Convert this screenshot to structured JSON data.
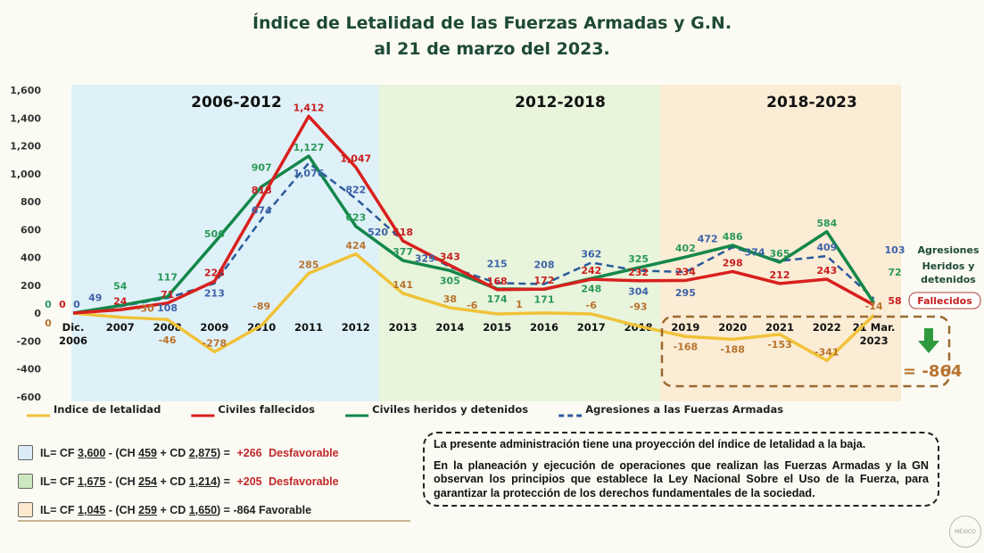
{
  "title_line1": "Índice de Letalidad de las Fuerzas Armadas y G.N.",
  "title_line2": "al 21 de marzo del 2023.",
  "chart_data": {
    "type": "line",
    "categories": [
      "Dic. 2006",
      "2007",
      "2008",
      "2009",
      "2010",
      "2011",
      "2012",
      "2013",
      "2014",
      "2015",
      "2016",
      "2017",
      "2018",
      "2019",
      "2020",
      "2021",
      "2022",
      "21 Mar. 2023"
    ],
    "ylim": [
      -600,
      1600
    ],
    "yticks": [
      -600,
      -400,
      -200,
      0,
      200,
      400,
      600,
      800,
      1000,
      1200,
      1400,
      1600
    ],
    "ytick_labels": [
      "-600",
      "-400",
      "-200",
      "0",
      "200",
      "400",
      "600",
      "800",
      "1,000",
      "1,200",
      "1,400",
      "1,600"
    ],
    "grid": false,
    "periods": [
      {
        "label": "2006-2012",
        "color": "#dff1f8"
      },
      {
        "label": "2012-2018",
        "color": "#e8f4dc"
      },
      {
        "label": "2018-2023",
        "color": "#fbecd6"
      }
    ],
    "series": [
      {
        "name": "Indice de letalidad",
        "color": "#f0c238",
        "label_color": "#b8732d",
        "dashed": false,
        "values": [
          0,
          -30,
          -46,
          -278,
          -89,
          285,
          424,
          141,
          38,
          -6,
          1,
          -6,
          -93,
          -168,
          -188,
          -153,
          -341,
          -14
        ]
      },
      {
        "name": "Civiles fallecidos",
        "color": "#d8201e",
        "label_color": "#c81e1e",
        "dashed": false,
        "values": [
          0,
          24,
          71,
          228,
          818,
          1412,
          1047,
          518,
          343,
          168,
          172,
          242,
          232,
          234,
          298,
          212,
          243,
          58
        ]
      },
      {
        "name": "Civiles heridos y detenidos",
        "color": "#13874a",
        "label_color": "#2a9a58",
        "dashed": false,
        "values": [
          0,
          54,
          117,
          506,
          907,
          1127,
          623,
          377,
          305,
          174,
          171,
          248,
          325,
          402,
          486,
          365,
          584,
          72
        ]
      },
      {
        "name": "Agresiones a las Fuerzas Armadas",
        "color": "#2b5a9a",
        "label_color": "#3d62a8",
        "dashed": true,
        "values": [
          0,
          49,
          108,
          213,
          674,
          1076,
          822,
          520,
          329,
          215,
          208,
          362,
          304,
          295,
          472,
          374,
          409,
          103
        ]
      }
    ],
    "end_labels": {
      "agresiones": "Agresiones",
      "heridos": "Heridos y detenidos",
      "fallecidos": "Fallecidos"
    },
    "annotation_total": "= -864",
    "annotation_arrow_color": "#2e9a3e"
  },
  "formulas": [
    {
      "box_color": "#dcecf7",
      "il": "IL= CF",
      "cf": "3,600",
      "ch_label": "- (CH",
      "ch": "459",
      "cd_label": "+ CD",
      "cd": "2,875",
      "eq": ") =",
      "result": "+266",
      "verdict": "Desfavorable",
      "unfavorable": true
    },
    {
      "box_color": "#cde8bf",
      "il": "IL= CF",
      "cf": "1,675",
      "ch_label": "- (CH",
      "ch": "254",
      "cd_label": "+ CD",
      "cd": "1,214",
      "eq": ") =",
      "result": "+205",
      "verdict": "Desfavorable",
      "unfavorable": true
    },
    {
      "box_color": "#fbe8cf",
      "il": "IL= CF",
      "cf": "1,045",
      "ch_label": "- (CH",
      "ch": "259",
      "cd_label": "+ CD",
      "cd": "1,650",
      "eq": ") =",
      "result": "-864",
      "verdict": "Favorable",
      "unfavorable": false
    }
  ],
  "note": {
    "p1": "La presente administración tiene una proyección del índice de letalidad a la baja.",
    "p2": "En la planeación y ejecución de operaciones que realizan las Fuerzas Armadas y la GN observan los principios que establece la Ley Nacional Sobre el Uso de la Fuerza, para garantizar la protección de los derechos fundamentales de la sociedad."
  },
  "seal_text": "MÉXICO"
}
